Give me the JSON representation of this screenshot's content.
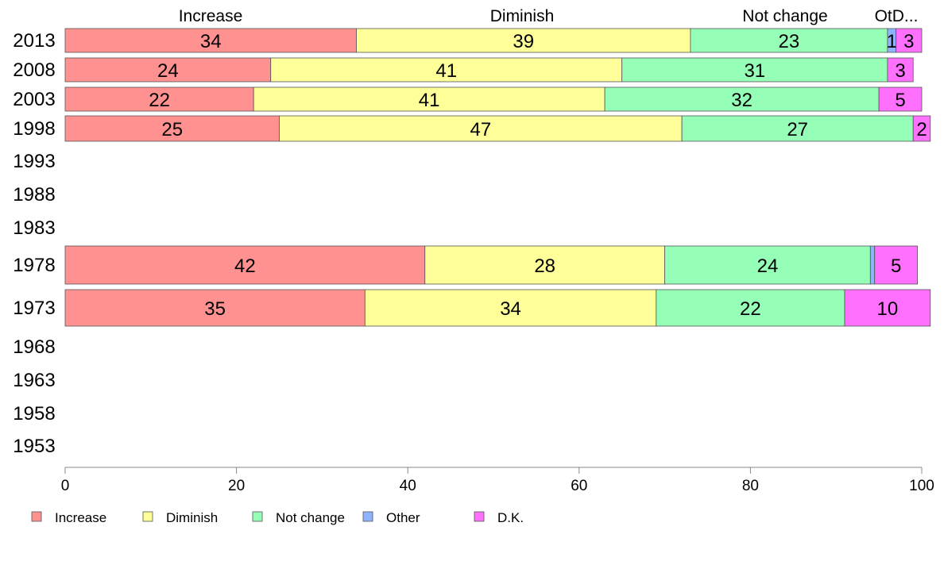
{
  "chart_data": {
    "type": "bar",
    "orientation": "horizontal",
    "stacked": true,
    "categories": [
      "2013",
      "2008",
      "2003",
      "1998",
      "1993",
      "1988",
      "1983",
      "1978",
      "1973",
      "1968",
      "1963",
      "1958",
      "1953"
    ],
    "series": [
      {
        "name": "Increase",
        "color": "#ff9290",
        "values": [
          34,
          24,
          22,
          25,
          null,
          null,
          null,
          42,
          35,
          null,
          null,
          null,
          null
        ]
      },
      {
        "name": "Diminish",
        "color": "#ffff99",
        "values": [
          39,
          41,
          41,
          47,
          null,
          null,
          null,
          28,
          34,
          null,
          null,
          null,
          null
        ]
      },
      {
        "name": "Not change",
        "color": "#95ffb8",
        "values": [
          23,
          31,
          32,
          27,
          null,
          null,
          null,
          24,
          22,
          null,
          null,
          null,
          null
        ]
      },
      {
        "name": "Other",
        "color": "#8fb4ff",
        "values": [
          1,
          0,
          0,
          0,
          null,
          null,
          null,
          0.5,
          0,
          null,
          null,
          null,
          null
        ]
      },
      {
        "name": "D.K.",
        "color": "#ff70ff",
        "values": [
          3,
          3,
          5,
          2,
          null,
          null,
          null,
          5,
          10,
          null,
          null,
          null,
          null
        ]
      }
    ],
    "bar_labels": {
      "2013": [
        "34",
        "39",
        "23",
        "1",
        "3"
      ],
      "2008": [
        "24",
        "41",
        "31",
        "",
        "3"
      ],
      "2003": [
        "22",
        "41",
        "32",
        "",
        "5"
      ],
      "1998": [
        "25",
        "47",
        "27",
        "",
        "2"
      ],
      "1978": [
        "42",
        "28",
        "24",
        "",
        "5"
      ],
      "1973": [
        "35",
        "34",
        "22",
        "",
        "10"
      ]
    },
    "column_headers": [
      "Increase",
      "Diminish",
      "Not change",
      "OtD..."
    ],
    "xlim": [
      0,
      100
    ],
    "xticks": [
      "0",
      "20",
      "40",
      "60",
      "80",
      "100"
    ],
    "legend": {
      "position": "bottom-left",
      "items": [
        "Increase",
        "Diminish",
        "Not change",
        "Other",
        "D.K."
      ]
    },
    "grid": false
  }
}
